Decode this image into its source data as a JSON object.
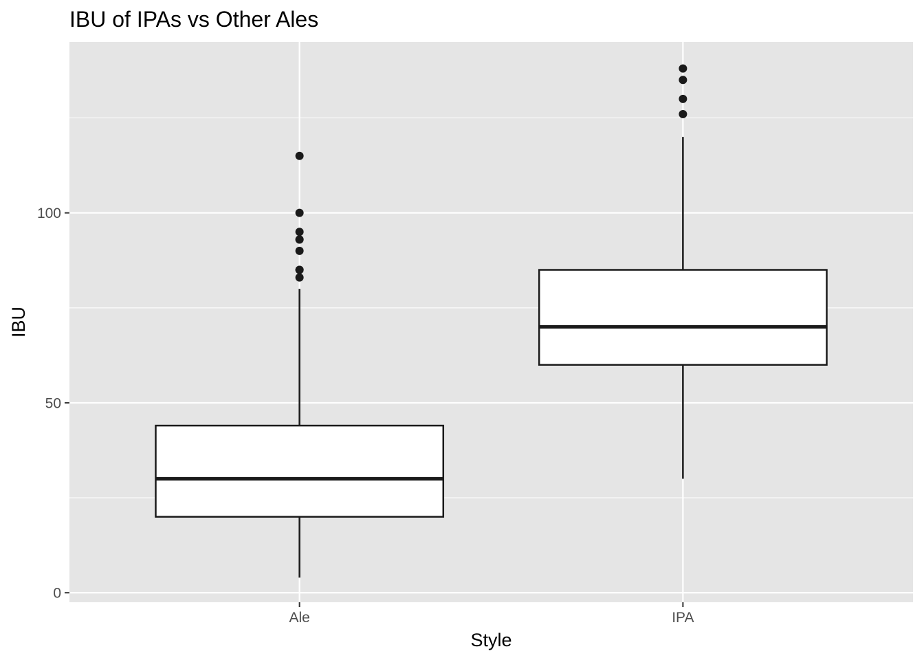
{
  "chart_data": {
    "type": "boxplot",
    "title": "IBU of IPAs vs Other Ales",
    "xlabel": "Style",
    "ylabel": "IBU",
    "categories": [
      "Ale",
      "IPA"
    ],
    "ylim": [
      -2.5,
      145
    ],
    "y_ticks": [
      0,
      50,
      100
    ],
    "y_tick_labels": [
      "0",
      "50",
      "100"
    ],
    "y_minor_ticks": [
      25,
      75,
      125
    ],
    "grid": true,
    "legend": "none",
    "boxes": [
      {
        "category": "Ale",
        "whisker_low": 4,
        "q1": 20,
        "median": 30,
        "q3": 44,
        "whisker_high": 80,
        "outliers": [
          83,
          85,
          85,
          90,
          93,
          93,
          95,
          100,
          115
        ]
      },
      {
        "category": "IPA",
        "whisker_low": 30,
        "q1": 60,
        "median": 70,
        "q3": 85,
        "whisker_high": 120,
        "outliers": [
          126,
          130,
          135,
          138
        ]
      }
    ],
    "colors": {
      "panel_background": "#e5e5e5",
      "grid_line": "#ffffff",
      "box_fill": "#ffffff",
      "box_stroke": "#1a1a1a",
      "outlier_fill": "#1a1a1a",
      "tick_color": "#333333",
      "tick_label_color": "#4d4d4d"
    }
  }
}
